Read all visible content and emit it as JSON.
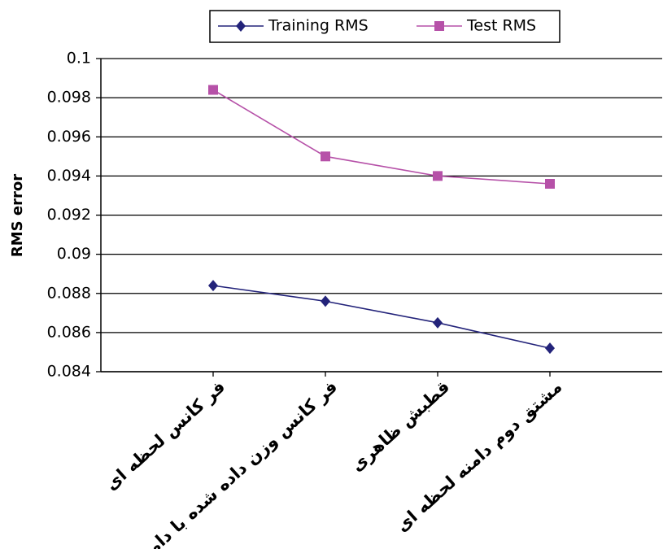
{
  "chart_data": {
    "type": "line",
    "y_label": "RMS error",
    "categories": [
      "فر کانس لحظه ای",
      "فر کانس وزن داده شده با دامنه",
      "قطبش ظاهری",
      "مشتق دوم دامنه لحظه ای"
    ],
    "series": [
      {
        "name": "Training RMS",
        "color": "#23237a",
        "marker": "diamond",
        "values": [
          0.0884,
          0.0876,
          0.0865,
          0.0852
        ]
      },
      {
        "name": "Test RMS",
        "color": "#b651a8",
        "marker": "square",
        "values": [
          0.0984,
          0.095,
          0.094,
          0.0936
        ]
      }
    ],
    "ylim": [
      0.084,
      0.1
    ],
    "yticks": [
      0.084,
      0.086,
      0.088,
      0.09,
      0.092,
      0.094,
      0.096,
      0.098,
      0.1
    ],
    "grid": true,
    "legend": "top"
  }
}
